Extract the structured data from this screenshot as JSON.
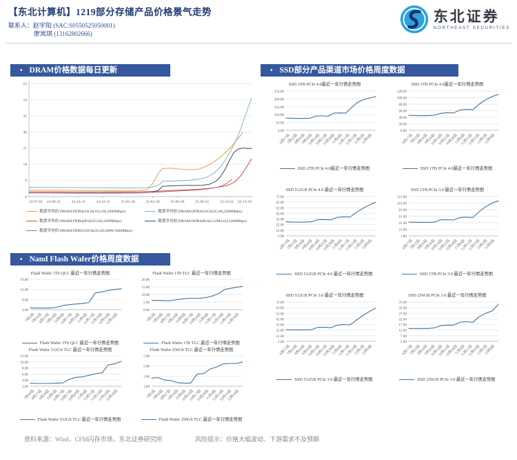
{
  "header": {
    "title": "【东北计算机】1219部分存储产品价格景气走势",
    "contact_label": "联系人：",
    "contact1": "赵宇阳 (SAC:S0550525050001)",
    "contact2": "廖岚琪 (13162802666)",
    "logo_cn": "东北证券",
    "logo_en": "NORTHEAST SECURITIES"
  },
  "sections": {
    "bullet": "•",
    "dram": "DRAM价格数据每日更新",
    "ssd": "SSD部分产品渠道市场价格周度数据",
    "nand": "Nand Flash Wafer价格周度数据"
  },
  "footer": {
    "source": "资料来源：Wind，CFM闪存市场，东北证券研究所",
    "risk": "风险提示：价格大幅波动、下游需求不及预期"
  },
  "colors": {
    "banner": "#35589E",
    "line": "#41719C",
    "grid": "#E3E3E3",
    "axis": "#ABABAB"
  },
  "chart_data": [
    {
      "id": "dram-daily",
      "type": "line",
      "title": "DRAM价格数据每日更新",
      "ylim": [
        0,
        63
      ],
      "yticks": [
        "63",
        "54",
        "45",
        "36",
        "27",
        "18",
        "9",
        "0"
      ],
      "x_labels": [
        "24-07-01",
        "24-08-31",
        "24-10-31",
        "24-12-31",
        "25-02-28",
        "25-04-30",
        "25-06-30",
        "25-08-31",
        "25-10-31",
        "25-12-19"
      ],
      "series": [
        {
          "name": "现货平均价:DRAM:DDR4(16Gb(1Gx16),3200Mbps)",
          "color": "#E8A33D",
          "points": [
            [
              0,
              3.6
            ],
            [
              8,
              3.6
            ],
            [
              16,
              3.5
            ],
            [
              24,
              3.4
            ],
            [
              32,
              3.3
            ],
            [
              40,
              3.2
            ],
            [
              48,
              3.2
            ],
            [
              53,
              3.8
            ],
            [
              56,
              8
            ],
            [
              58,
              13
            ],
            [
              60,
              15.6
            ],
            [
              64,
              15.8
            ],
            [
              68,
              15.3
            ],
            [
              72,
              15.0
            ],
            [
              76,
              15.2
            ],
            [
              79,
              16.5
            ],
            [
              82,
              18.5
            ],
            [
              85,
              21
            ],
            [
              87,
              23
            ],
            [
              89,
              25.5
            ],
            [
              91,
              28
            ],
            [
              93,
              31
            ],
            [
              95,
              34
            ],
            [
              96,
              36
            ]
          ]
        },
        {
          "name": "现货平均价:DRAM:DDR4(16Gb(2Gx8),3200Mbps)",
          "color": "#7FB3C9",
          "points": [
            [
              0,
              5.2
            ],
            [
              10,
              5.1
            ],
            [
              20,
              5.0
            ],
            [
              30,
              4.9
            ],
            [
              40,
              4.8
            ],
            [
              50,
              4.8
            ],
            [
              55,
              5.1
            ],
            [
              58,
              6.2
            ],
            [
              60,
              8.4
            ],
            [
              64,
              8.6
            ],
            [
              68,
              8.8
            ],
            [
              72,
              9.1
            ],
            [
              76,
              9.6
            ],
            [
              80,
              10.8
            ],
            [
              83,
              13
            ],
            [
              86,
              16.5
            ],
            [
              88,
              20
            ],
            [
              90,
              24
            ],
            [
              92,
              29
            ],
            [
              94,
              34
            ],
            [
              96,
              41
            ],
            [
              98,
              48
            ],
            [
              100,
              55
            ]
          ]
        },
        {
          "name": "现货平均价:DRAM:DDR4(8Gb(1Gx8),3200Mbps)",
          "color": "#C0504D",
          "points": [
            [
              0,
              2.7
            ],
            [
              10,
              2.7
            ],
            [
              20,
              2.6
            ],
            [
              30,
              2.6
            ],
            [
              40,
              2.6
            ],
            [
              50,
              2.7
            ],
            [
              58,
              3.0
            ],
            [
              65,
              3.4
            ],
            [
              70,
              3.7
            ],
            [
              75,
              4.0
            ],
            [
              79,
              4.3
            ],
            [
              83,
              4.8
            ],
            [
              86,
              5.4
            ],
            [
              89,
              6.2
            ],
            [
              91,
              7.2
            ],
            [
              93,
              8.8
            ],
            [
              95,
              11.5
            ],
            [
              97,
              15
            ],
            [
              99,
              19
            ],
            [
              100,
              21
            ]
          ]
        },
        {
          "name": "现货平均价:DRAM:DDR4(8Gb(512Mx16),3200Mbps)",
          "color": "#3A4A63",
          "points": [
            [
              0,
              2.1
            ],
            [
              10,
              2.1
            ],
            [
              20,
              2.0
            ],
            [
              30,
              2.0
            ],
            [
              40,
              2.0
            ],
            [
              50,
              2.1
            ],
            [
              55,
              2.3
            ],
            [
              58,
              3.4
            ],
            [
              60,
              5.6
            ],
            [
              63,
              5.9
            ],
            [
              67,
              6.1
            ],
            [
              71,
              6.2
            ],
            [
              75,
              6.2
            ],
            [
              78,
              6.3
            ],
            [
              81,
              6.8
            ],
            [
              84,
              8.5
            ],
            [
              86,
              11
            ],
            [
              88,
              15
            ],
            [
              90,
              20
            ],
            [
              92,
              24.5
            ],
            [
              94,
              26.5
            ],
            [
              96,
              27
            ],
            [
              98,
              26.8
            ],
            [
              100,
              26.8
            ]
          ]
        },
        {
          "name": "现货平均价:DRAM:DDR5(16Gb(2Gx8),4800/5600Mbps)",
          "color": "#C2697E",
          "points": [
            [
              0,
              2.0
            ],
            [
              10,
              2.0
            ],
            [
              20,
              1.9
            ],
            [
              30,
              1.9
            ],
            [
              40,
              1.9
            ],
            [
              50,
              2.0
            ],
            [
              57,
              2.4
            ],
            [
              62,
              2.8
            ],
            [
              67,
              3.1
            ],
            [
              72,
              3.4
            ],
            [
              76,
              3.7
            ],
            [
              80,
              4.2
            ],
            [
              83,
              4.8
            ],
            [
              85,
              5.3
            ],
            [
              87,
              6.2
            ],
            [
              89,
              7.5
            ],
            [
              90,
              8.5
            ],
            [
              91,
              9.5
            ]
          ]
        }
      ]
    },
    {
      "id": "ssd-2tb-pcie4",
      "type": "line",
      "title": "SSD 2TB PCIe 4.0最近一年行情走势图",
      "legend": "SSD 2TB PCIe 4.0最近一年行情走势图",
      "yticks": [
        "254.00",
        "204.00",
        "154.00",
        "104.00",
        "54.00",
        "4.00"
      ],
      "x_labels": [
        "6月17日",
        "7月22日",
        "8月26日",
        "9月30日",
        "10月14日",
        "10月21日",
        "10月28日",
        "11月4日",
        "11月11日",
        "11月25日",
        "12月2日",
        "12月9日"
      ],
      "values": [
        82,
        81,
        80,
        80,
        81,
        95,
        96,
        94,
        113,
        115,
        114,
        150,
        183,
        200,
        210,
        218
      ]
    },
    {
      "id": "ssd-1tb-pcie4",
      "type": "line",
      "title": "SSD 1TB PCIe 4.0最近一年行情走势图",
      "legend": "SSD 1TB PCIe 4.0最近一年行情走势图",
      "yticks": [
        "120.00",
        "100.00",
        "80.00",
        "60.00",
        "40.00",
        "20.00",
        "0.00"
      ],
      "x_labels": [
        "6月17日",
        "7月22日",
        "8月26日",
        "9月30日",
        "10月14日",
        "10月21日",
        "10月28日",
        "11月4日",
        "11月11日",
        "11月25日",
        "12月2日",
        "12月9日"
      ],
      "values": [
        46,
        45,
        45,
        45,
        46,
        52,
        54,
        53,
        62,
        64,
        63,
        80,
        93,
        103,
        110
      ]
    },
    {
      "id": "ssd-512gb-pcie4",
      "type": "line",
      "title": "SSD 512GB PCIe 4.0 最近一年行情走势图",
      "legend": "SSD 512GB PCIe 4.0 最近一年行情走势图",
      "yticks": [
        "72.00",
        "62.00",
        "52.00",
        "42.00",
        "32.00",
        "22.00",
        "12.00",
        "2.00"
      ],
      "x_labels": [
        "6月17日",
        "7月22日",
        "8月26日",
        "9月30日",
        "10月14日",
        "10月21日",
        "10月28日",
        "11月4日",
        "11月11日",
        "11月25日",
        "12月2日",
        "12月9日"
      ],
      "values": [
        27,
        26.5,
        26.5,
        26.5,
        27,
        31,
        31,
        30.5,
        35,
        36,
        35.5,
        44,
        51,
        57,
        62
      ]
    },
    {
      "id": "ssd-1tb-pcie3",
      "type": "line",
      "title": "SSD 1TB PCIe 3.0 最近一年行情走势图",
      "legend": "SSD 1TB PCIe 3.0 最近一年行情走势图",
      "yticks": [
        "121.00",
        "101.00",
        "81.00",
        "61.00",
        "41.00",
        "21.00",
        "1.00"
      ],
      "x_labels": [
        "6月17日",
        "7月22日",
        "8月26日",
        "9月30日",
        "10月14日",
        "10月21日",
        "10月28日",
        "11月4日",
        "11月11日",
        "11月25日",
        "12月2日",
        "12月9日"
      ],
      "values": [
        43,
        42.5,
        42.5,
        42.5,
        43,
        50,
        50,
        49.5,
        57,
        58,
        57,
        75,
        90,
        101,
        108
      ]
    },
    {
      "id": "ssd-512gb-pcie3",
      "type": "line",
      "title": "SSD 512GB PCIe 3.0 最近一年行情走势图",
      "legend": "SSD 512GB PCIe 3.0 最近一年行情走势图",
      "yticks": [
        "72.00",
        "62.00",
        "52.00",
        "42.00",
        "32.00",
        "22.00",
        "12.00",
        "2.00"
      ],
      "x_labels": [
        "6月17日",
        "7月22日",
        "8月26日",
        "9月30日",
        "10月14日",
        "10月21日",
        "10月28日",
        "11月4日",
        "11月11日",
        "11月25日",
        "12月2日",
        "12月9日"
      ],
      "values": [
        23,
        22.5,
        22.5,
        22.5,
        23,
        27,
        27,
        26.5,
        31,
        32,
        31.5,
        40,
        48,
        55,
        61
      ]
    },
    {
      "id": "ssd-256gb-pcie3",
      "type": "line",
      "title": "SSD 256GB PCIe 3.0 最近一年行情走势图",
      "legend": "SSD 256GB PCIe 3.0 最近一年行情走势图",
      "yticks": [
        "37.00",
        "32.00",
        "27.00",
        "22.00",
        "17.00",
        "12.00",
        "7.00",
        "2.00"
      ],
      "x_labels": [
        "6月17日",
        "7月22日",
        "8月26日",
        "9月30日",
        "10月14日",
        "10月21日",
        "10月28日",
        "11月4日",
        "11月11日",
        "11月25日",
        "12月2日",
        "12月9日"
      ],
      "values": [
        13.5,
        13.5,
        13.5,
        13.5,
        14,
        16,
        16.5,
        16.5,
        19,
        19.5,
        19,
        24,
        27,
        29,
        35
      ]
    },
    {
      "id": "flash-1tb-qlc",
      "type": "line",
      "title": "Flash Wafer 1Tb QLC 最近一年行情走势图",
      "legend": "Flash Wafer 1Tb QLC 最近一年行情走势图",
      "yticks": [
        "19.00",
        "14.00",
        "9.00",
        "4.00"
      ],
      "x_labels": [
        "7月2日",
        "7月30日",
        "8月27日",
        "9月24日",
        "10月9日",
        "10月17日",
        "10月24日",
        "11月4日",
        "11月11日",
        "11月19日",
        "12月16日",
        "12月18日"
      ],
      "values": [
        4.9,
        4.8,
        4.8,
        4.8,
        5.2,
        6,
        6.5,
        6.8,
        7,
        7.5,
        12.3,
        12.8,
        13.5,
        14,
        14.3
      ]
    },
    {
      "id": "flash-1tb-tlc",
      "type": "line",
      "title": "Flash Wafer 1Tb TLC 最近一年行情走势图",
      "legend": "Flash Wafer 1Tb TLC 最近一年行情走势图",
      "yticks": [
        "20.00",
        "15.00",
        "10.00",
        "5.00",
        "0.00"
      ],
      "x_labels": [
        "7月2日",
        "7月30日",
        "8月27日",
        "9月24日",
        "10月9日",
        "10月17日",
        "10月24日",
        "11月4日",
        "11月11日",
        "11月19日",
        "12月16日",
        "12月18日"
      ],
      "values": [
        6.2,
        6.1,
        6,
        5.9,
        6.5,
        7,
        7.4,
        7.5,
        7.6,
        8,
        9,
        10.5,
        13.3,
        14,
        14.8,
        15.3
      ]
    },
    {
      "id": "flash-512gb-tlc",
      "type": "line",
      "title": "Flash Wafer 512Gb TLC 最近一年行情走势图",
      "legend": "Flash Wafer 512Gb TLC 最近一年行情走势图",
      "yticks": [
        "12.00",
        "10.00",
        "8.00",
        "6.00",
        "4.00",
        "2.00"
      ],
      "x_labels": [
        "7月30日",
        "8月27日",
        "9月24日",
        "10月6日",
        "10月17日",
        "10月17日",
        "10月28日",
        "11月4日",
        "11月11日",
        "11月12日",
        "12月16日",
        "12月18日"
      ],
      "values": [
        3,
        2.9,
        2.9,
        2.9,
        3,
        3.1,
        4.3,
        4.9,
        5.1,
        5.6,
        6.1,
        6.4,
        9,
        9.4,
        10.2
      ]
    },
    {
      "id": "flash-256gb-tlc",
      "type": "line",
      "title": "Flash Wafer 256Gb TLC 最近一年行情走势图",
      "legend": "Flash Wafer 256Gb TLC 最近一年行情走势图",
      "yticks": [
        "7.00",
        "5.00",
        "3.00",
        "1.00"
      ],
      "x_labels": [
        "7月2日",
        "7月30日",
        "8月27日",
        "9月24日",
        "10月9日",
        "10月10日",
        "10月17日",
        "10月28日",
        "11月4日",
        "11月12日",
        "12月16日",
        "12月18日"
      ],
      "values": [
        2.6,
        2.7,
        2.2,
        2.1,
        1.7,
        1.6,
        1.6,
        3.4,
        3.5,
        4.4,
        4.8,
        5.4,
        5.5,
        5.5,
        5.8
      ]
    }
  ]
}
